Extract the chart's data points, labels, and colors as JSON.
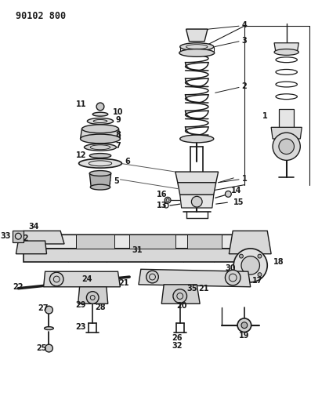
{
  "title": "90102 800",
  "bg_color": "#ffffff",
  "lc": "#1a1a1a",
  "title_fontsize": 8.5,
  "label_fontsize": 7,
  "fig_width": 3.97,
  "fig_height": 5.33,
  "dpi": 100
}
